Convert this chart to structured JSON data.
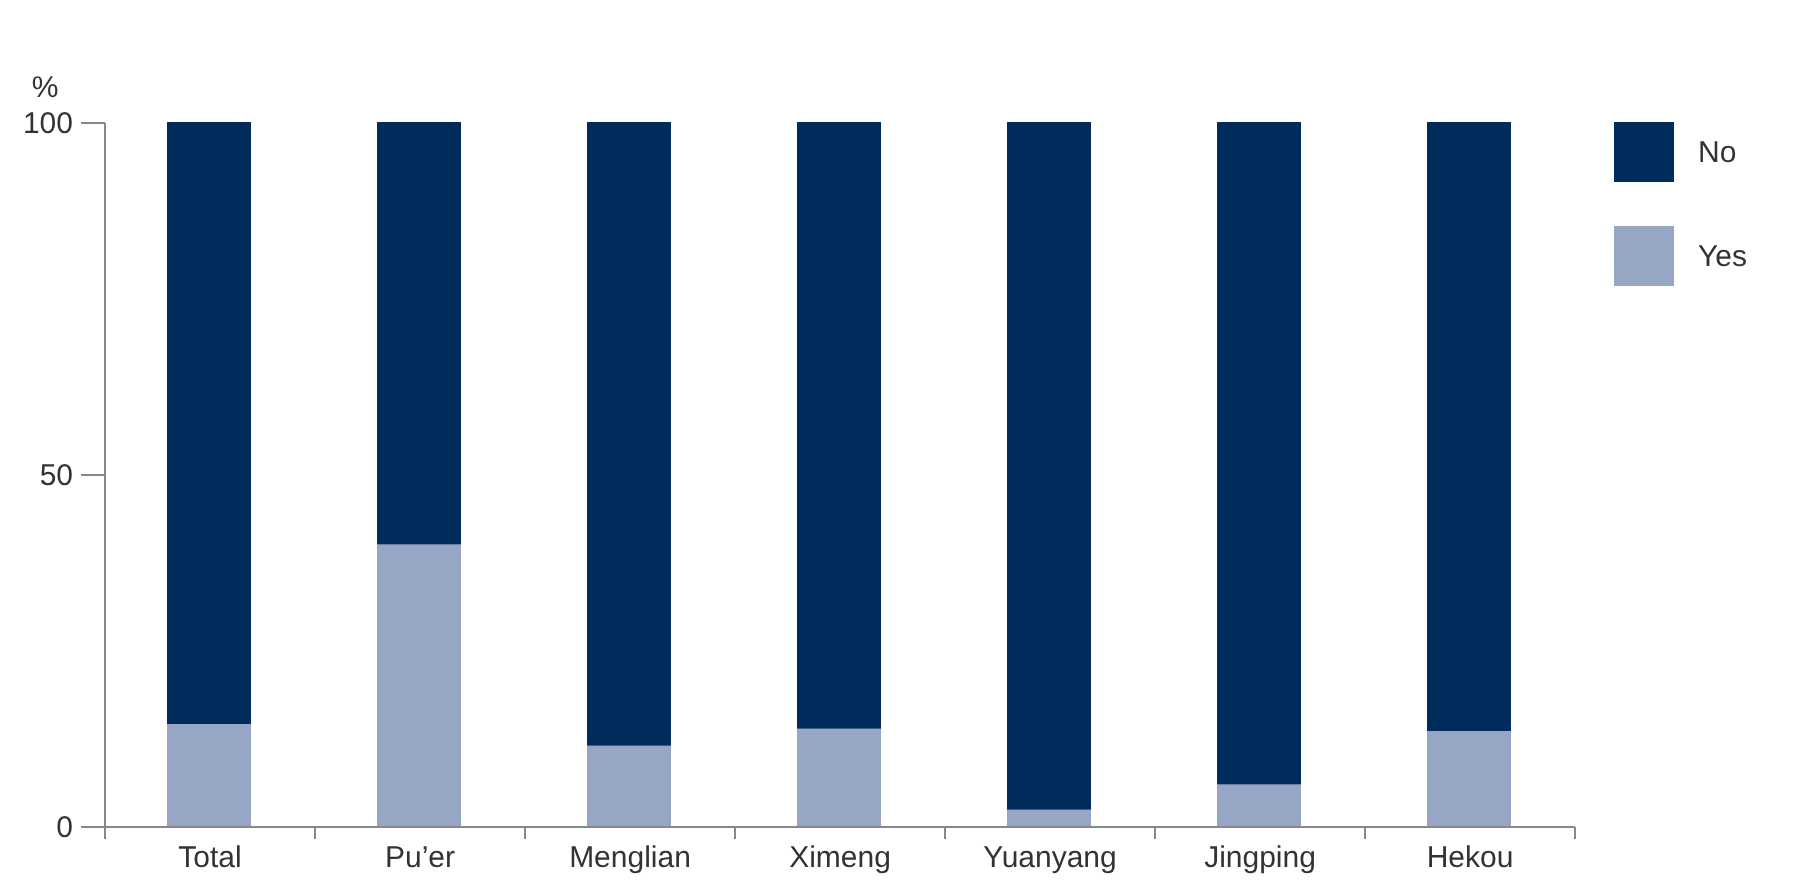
{
  "chart_data": {
    "type": "bar",
    "stacked": true,
    "ylabel": "%",
    "categories": [
      "Total",
      "Pu’er",
      "Menglian",
      "Ximeng",
      "Yuanyang",
      "Jingping",
      "Hekou"
    ],
    "series": [
      {
        "name": "Yes",
        "color": "#97a6c4",
        "values": [
          14.5,
          40,
          11.4,
          13.8,
          2.3,
          5.9,
          13.5
        ]
      },
      {
        "name": "No",
        "color": "#002c5c",
        "values": [
          85.5,
          60,
          88.6,
          86.2,
          97.7,
          94.1,
          86.5
        ]
      }
    ],
    "ylim": [
      0,
      100
    ],
    "yticks": [
      0,
      50,
      100
    ],
    "grid": false,
    "legend": "top right"
  }
}
